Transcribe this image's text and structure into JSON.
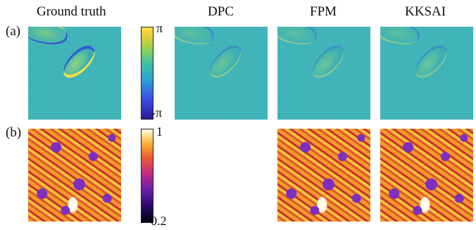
{
  "columns": [
    "Ground truth",
    "DPC",
    "FPM",
    "KKSAI"
  ],
  "rows": [
    "(a)",
    "(b)"
  ],
  "colorbars": {
    "phase": {
      "max": "π",
      "min": "-π"
    },
    "amplitude": {
      "max": "1",
      "min": "0.2"
    }
  }
}
